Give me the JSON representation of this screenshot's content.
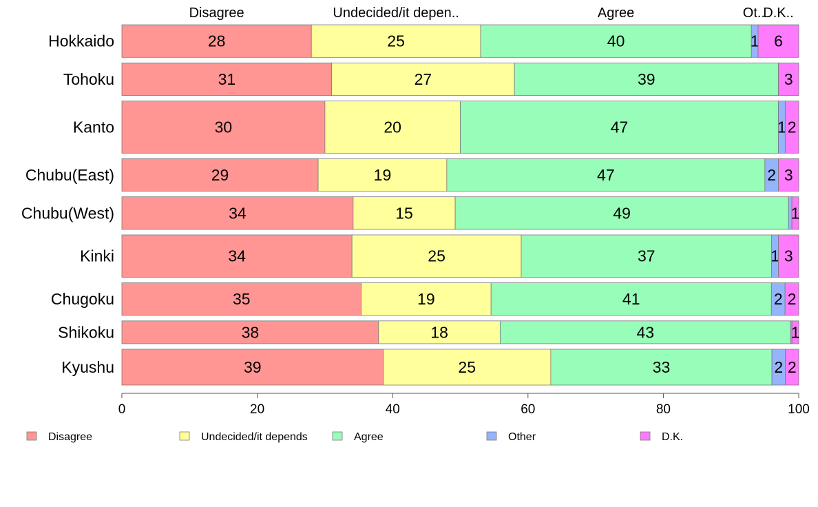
{
  "chart_data": {
    "type": "bar",
    "orientation": "horizontal",
    "stacked": true,
    "categories": [
      "Hokkaido",
      "Tohoku",
      "Kanto",
      "Chubu(East)",
      "Chubu(West)",
      "Kinki",
      "Chugoku",
      "Shikoku",
      "Kyushu"
    ],
    "bar_widths": [
      1,
      1,
      1.6,
      1,
      1,
      1.3,
      1,
      0.7,
      1.1
    ],
    "series": [
      {
        "name": "Disagree",
        "color": "#ff9694",
        "values": [
          28,
          31,
          30,
          29,
          34,
          34,
          35,
          38,
          39
        ],
        "labels": [
          "28",
          "31",
          "30",
          "29",
          "34",
          "34",
          "35",
          "38",
          "39"
        ]
      },
      {
        "name": "Undecided/it depends",
        "color": "#ffff9b",
        "values": [
          25,
          27,
          20,
          19,
          15,
          25,
          19,
          18,
          25
        ],
        "labels": [
          "25",
          "27",
          "20",
          "19",
          "15",
          "25",
          "19",
          "18",
          "25"
        ]
      },
      {
        "name": "Agree",
        "color": "#98fdb8",
        "values": [
          40,
          39,
          47,
          47,
          49,
          37,
          41,
          43,
          33
        ],
        "labels": [
          "40",
          "39",
          "47",
          "47",
          "49",
          "37",
          "41",
          "43",
          "33"
        ]
      },
      {
        "name": "Other",
        "color": "#94b4fc",
        "values": [
          1,
          0,
          1,
          2,
          0.5,
          1,
          2,
          0.2,
          2
        ],
        "labels": [
          "1",
          "",
          "1",
          "2",
          "",
          "1",
          "2",
          "",
          "2"
        ]
      },
      {
        "name": "D.K.",
        "color": "#ff7bfd",
        "values": [
          6,
          3,
          2,
          3,
          1,
          3,
          2,
          1,
          2
        ],
        "labels": [
          "6",
          "3",
          "2",
          "3",
          "1",
          "3",
          "2",
          "1",
          "2"
        ]
      }
    ],
    "top_labels": [
      "Disagree",
      "Undecided/it depen..",
      "Agree",
      "Ot..",
      "D.K.."
    ],
    "xlim": [
      0,
      100
    ],
    "xticks": [
      0,
      20,
      40,
      60,
      80,
      100
    ],
    "legend": [
      "Disagree",
      "Undecided/it depends",
      "Agree",
      "Other",
      "D.K."
    ],
    "legend_position": "bottom",
    "grid": false
  }
}
